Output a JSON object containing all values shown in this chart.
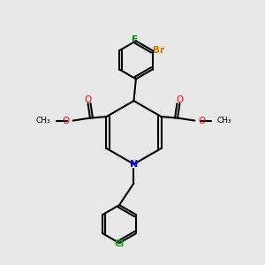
{
  "bg_color": "#e8e8e8",
  "atom_colors": {
    "N": "#0000ff",
    "O": "#ff0000",
    "Br": "#cc7700",
    "F": "#008800",
    "Cl": "#00aa00",
    "C": "#000000"
  },
  "figsize": [
    3.0,
    3.0
  ],
  "dpi": 100
}
